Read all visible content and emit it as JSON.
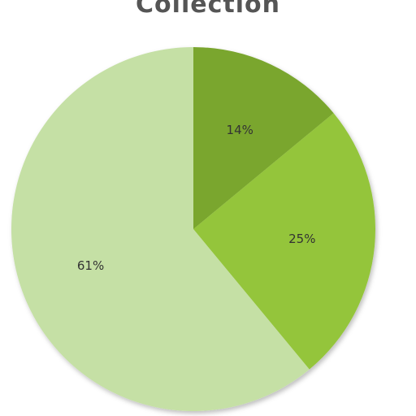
{
  "chart_data": {
    "type": "pie",
    "title": "Collection",
    "slices": [
      {
        "label": "14%",
        "value": 14,
        "color": "#7aa62e"
      },
      {
        "label": "25%",
        "value": 25,
        "color": "#94c53b"
      },
      {
        "label": "61%",
        "value": 61,
        "color": "#c5e0a5"
      }
    ],
    "start_angle_deg": 0,
    "direction": "clockwise",
    "legend": "none"
  }
}
